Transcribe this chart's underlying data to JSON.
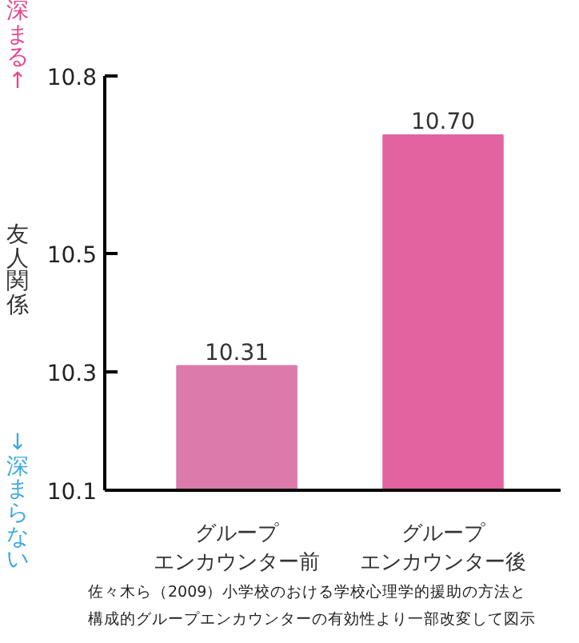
{
  "chart_data": {
    "type": "bar",
    "ylabel": "友人関係",
    "categories": [
      "グループエンカウンター前",
      "グループエンカウンター後"
    ],
    "values": [
      10.31,
      10.7
    ],
    "colors": [
      "#db7aab",
      "#e2639f"
    ],
    "value_labels": [
      "10.31",
      "10.70"
    ],
    "ylim": [
      10.1,
      10.8
    ],
    "yticks": [
      10.1,
      10.3,
      10.5,
      10.8
    ],
    "grid": false,
    "annotations": [
      "深まる↑",
      "↓深まらない",
      "佐々木ら（2009）小学校のおける学校心理学的援助の方法と構成的グループエンカウンターの有効性より一部改変して図示"
    ]
  }
}
